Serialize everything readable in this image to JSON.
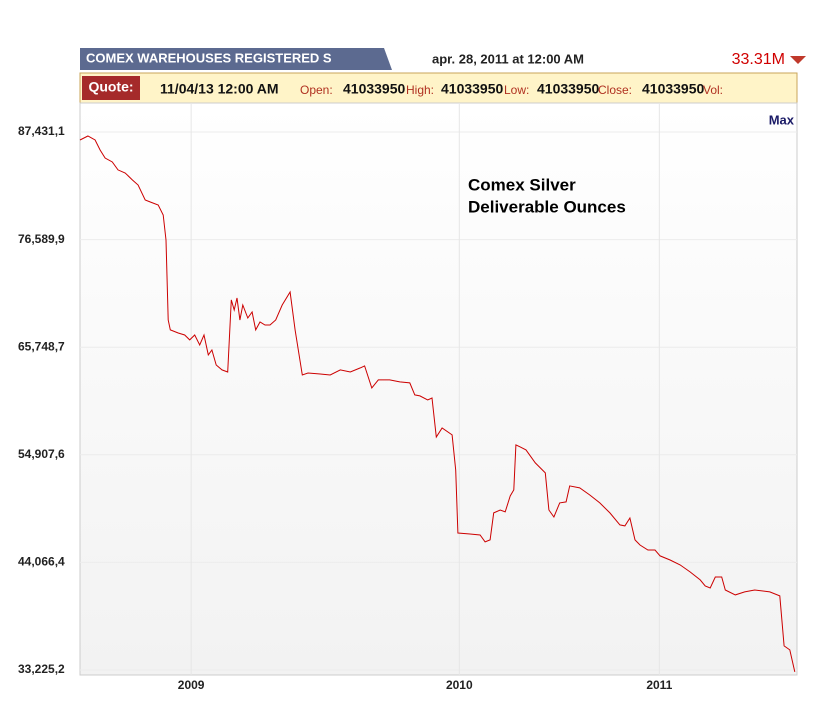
{
  "header": {
    "tab": "COMEX WAREHOUSES REGISTERED S",
    "date": "apr. 28, 2011 at 12:00 AM",
    "last": "33.31M"
  },
  "quote": {
    "label": "Quote:",
    "datetime": "11/04/13 12:00 AM",
    "open_label": "Open:",
    "open": "41033950",
    "high_label": "High:",
    "high": "41033950",
    "low_label": "Low:",
    "low": "41033950",
    "close_label": "Close:",
    "close": "41033950",
    "vol_label": "Vol:"
  },
  "chart_data": {
    "type": "line",
    "range_label": "Max",
    "annotations": [
      "Comex Silver",
      "Deliverable Ounces"
    ],
    "xlim": [
      0,
      100
    ],
    "xticks": [
      {
        "value": 15.5,
        "label": "2009"
      },
      {
        "value": 52.9,
        "label": "2010"
      },
      {
        "value": 80.8,
        "label": "2011"
      }
    ],
    "ylim": [
      32721000,
      90353000
    ],
    "yticks": [
      {
        "value": 33225200,
        "label": "33,225,2"
      },
      {
        "value": 44066400,
        "label": "44,066,4"
      },
      {
        "value": 54907600,
        "label": "54,907,6"
      },
      {
        "value": 65748700,
        "label": "65,748,7"
      },
      {
        "value": 76589900,
        "label": "76,589,9"
      },
      {
        "value": 87431100,
        "label": "87,431,1"
      }
    ],
    "grid": true,
    "series": [
      {
        "color": "#cc0000",
        "x": [
          0,
          1.1,
          2.1,
          2.8,
          3.5,
          4.5,
          5.3,
          6.3,
          7.3,
          8.1,
          9.1,
          9.8,
          10.9,
          11.6,
          12.0,
          12.3,
          12.6,
          13.7,
          14.6,
          15.3,
          16.0,
          16.7,
          17.3,
          17.9,
          18.4,
          19.0,
          19.8,
          20.6,
          21.1,
          21.5,
          21.9,
          22.3,
          22.7,
          23.4,
          24.0,
          24.5,
          25.1,
          25.8,
          26.5,
          27.3,
          28.2,
          29.3,
          30.0,
          31.0,
          31.8,
          33.5,
          34.9,
          36.3,
          37.7,
          39.1,
          39.7,
          40.7,
          41.6,
          43.2,
          44.6,
          46.0,
          46.7,
          47.4,
          48.5,
          49.1,
          49.7,
          50.5,
          51.9,
          52.4,
          52.7,
          54.4,
          55.8,
          56.5,
          57.2,
          57.7,
          58.6,
          59.3,
          60.0,
          60.5,
          60.8,
          61.4,
          62.2,
          63.5,
          64.9,
          65.4,
          66.1,
          66.9,
          67.8,
          68.3,
          69.7,
          71.1,
          72.5,
          73.9,
          75.3,
          76.0,
          76.7,
          77.4,
          78.1,
          79.2,
          80.2,
          80.9,
          82.3,
          83.7,
          85.1,
          86.5,
          87.2,
          87.9,
          88.6,
          89.5,
          90.0,
          91.4,
          92.7,
          94.1,
          96.2,
          97.6,
          98.2,
          99.0,
          99.7
        ],
        "values": [
          86630000,
          87030000,
          86630000,
          85620000,
          84810000,
          84410000,
          83610000,
          83300000,
          82600000,
          82090000,
          80580000,
          80380000,
          80080000,
          79070000,
          76550000,
          68490000,
          67490000,
          67180000,
          66980000,
          66480000,
          66980000,
          65970000,
          66980000,
          64970000,
          65470000,
          63960000,
          63460000,
          63250000,
          70510000,
          69500000,
          70710000,
          68490000,
          70000000,
          68690000,
          69300000,
          67490000,
          68290000,
          67990000,
          67990000,
          68490000,
          70000000,
          71310000,
          67490000,
          62950000,
          63150000,
          63050000,
          62950000,
          63460000,
          63250000,
          63660000,
          63860000,
          61640000,
          62450000,
          62450000,
          62250000,
          62150000,
          60940000,
          60840000,
          60430000,
          60630000,
          56700000,
          57610000,
          56910000,
          53380000,
          47030000,
          46930000,
          46830000,
          46130000,
          46330000,
          49050000,
          49350000,
          49150000,
          50760000,
          51370000,
          55900000,
          55700000,
          55400000,
          54090000,
          53080000,
          49350000,
          48640000,
          50060000,
          50160000,
          51770000,
          51570000,
          50860000,
          50060000,
          49050000,
          47840000,
          47740000,
          48540000,
          46330000,
          45820000,
          45320000,
          45320000,
          44720000,
          44310000,
          43810000,
          43100000,
          42300000,
          41690000,
          41490000,
          42600000,
          42600000,
          41290000,
          40790000,
          41090000,
          41290000,
          41090000,
          40690000,
          35650000,
          35250000,
          33030000
        ]
      }
    ]
  }
}
